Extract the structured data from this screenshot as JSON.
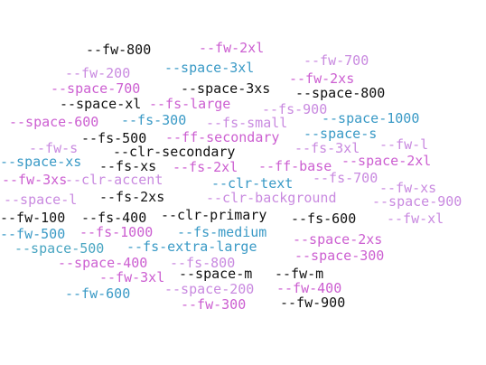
{
  "colors": {
    "black": "#111111",
    "magenta": "#cc5fd1",
    "light_purple": "#c98ae0",
    "blue": "#3a9ac6",
    "teal": "#4aa6c2"
  },
  "words": [
    {
      "text": "--fw-800",
      "color": "black"
    },
    {
      "text": "--fw-2xl",
      "color": "magenta"
    },
    {
      "text": "--fw-700",
      "color": "light_purple"
    },
    {
      "text": "--fw-200",
      "color": "light_purple"
    },
    {
      "text": "--space-3xl",
      "color": "blue"
    },
    {
      "text": "--fw-2xs",
      "color": "magenta"
    },
    {
      "text": "--space-700",
      "color": "magenta"
    },
    {
      "text": "--space-3xs",
      "color": "black"
    },
    {
      "text": "--space-800",
      "color": "black"
    },
    {
      "text": "--space-xl",
      "color": "black"
    },
    {
      "text": "--fs-large",
      "color": "magenta"
    },
    {
      "text": "--fs-900",
      "color": "light_purple"
    },
    {
      "text": "--space-600",
      "color": "magenta"
    },
    {
      "text": "--fs-300",
      "color": "blue"
    },
    {
      "text": "--fs-small",
      "color": "light_purple"
    },
    {
      "text": "--space-1000",
      "color": "blue"
    },
    {
      "text": "--fs-500",
      "color": "black"
    },
    {
      "text": "--ff-secondary",
      "color": "magenta"
    },
    {
      "text": "--space-s",
      "color": "blue"
    },
    {
      "text": "--fw-s",
      "color": "light_purple"
    },
    {
      "text": "--clr-secondary",
      "color": "black"
    },
    {
      "text": "--fs-3xl",
      "color": "light_purple"
    },
    {
      "text": "--fw-l",
      "color": "light_purple"
    },
    {
      "text": "--space-xs",
      "color": "blue"
    },
    {
      "text": "--fs-xs",
      "color": "black"
    },
    {
      "text": "--fs-2xl",
      "color": "magenta"
    },
    {
      "text": "--ff-base",
      "color": "magenta"
    },
    {
      "text": "--space-2xl",
      "color": "magenta"
    },
    {
      "text": "--fw-3xs",
      "color": "magenta"
    },
    {
      "text": "--clr-accent",
      "color": "light_purple"
    },
    {
      "text": "--clr-text",
      "color": "blue"
    },
    {
      "text": "--fs-700",
      "color": "light_purple"
    },
    {
      "text": "--fw-xs",
      "color": "light_purple"
    },
    {
      "text": "--space-l",
      "color": "light_purple"
    },
    {
      "text": "--fs-2xs",
      "color": "black"
    },
    {
      "text": "--clr-background",
      "color": "light_purple"
    },
    {
      "text": "--space-900",
      "color": "light_purple"
    },
    {
      "text": "--fw-100",
      "color": "black"
    },
    {
      "text": "--fs-400",
      "color": "black"
    },
    {
      "text": "--clr-primary",
      "color": "black"
    },
    {
      "text": "--fs-600",
      "color": "black"
    },
    {
      "text": "--fw-xl",
      "color": "light_purple"
    },
    {
      "text": "--fw-500",
      "color": "blue"
    },
    {
      "text": "--fs-1000",
      "color": "magenta"
    },
    {
      "text": "--fs-medium",
      "color": "blue"
    },
    {
      "text": "--space-2xs",
      "color": "magenta"
    },
    {
      "text": "--space-500",
      "color": "teal"
    },
    {
      "text": "--fs-extra-large",
      "color": "blue"
    },
    {
      "text": "--space-300",
      "color": "magenta"
    },
    {
      "text": "--space-400",
      "color": "magenta"
    },
    {
      "text": "--fs-800",
      "color": "light_purple"
    },
    {
      "text": "--fw-3xl",
      "color": "magenta"
    },
    {
      "text": "--space-m",
      "color": "black"
    },
    {
      "text": "--fw-m",
      "color": "black"
    },
    {
      "text": "--fw-600",
      "color": "blue"
    },
    {
      "text": "--space-200",
      "color": "light_purple"
    },
    {
      "text": "--fw-400",
      "color": "magenta"
    },
    {
      "text": "--fw-300",
      "color": "magenta"
    },
    {
      "text": "--fw-900",
      "color": "black"
    }
  ]
}
